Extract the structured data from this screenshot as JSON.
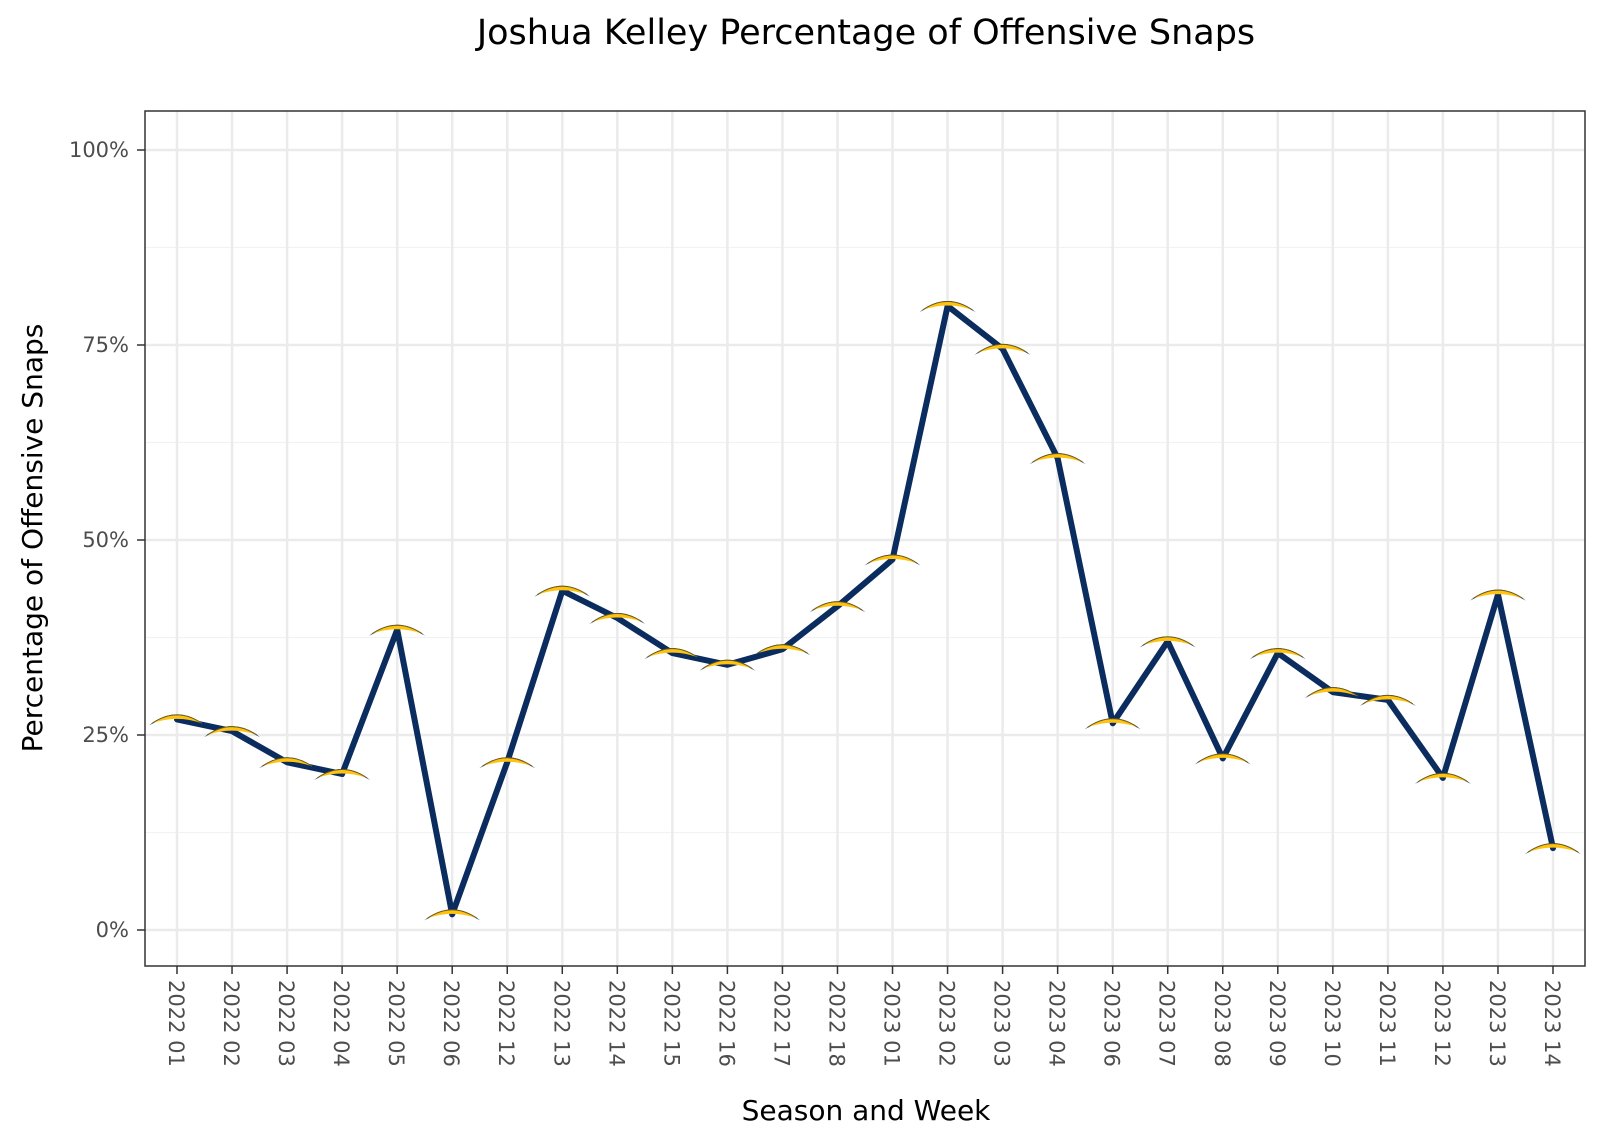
{
  "chart_data": {
    "type": "line",
    "title": "Joshua Kelley Percentage of Offensive Snaps",
    "xlabel": "Season and Week",
    "ylabel": "Percentage of Offensive Snaps",
    "ylim": [
      0,
      100
    ],
    "y_ticks": [
      "0%",
      "25%",
      "50%",
      "75%",
      "100%"
    ],
    "grid": true,
    "categories": [
      "2022 01",
      "2022 02",
      "2022 03",
      "2022 04",
      "2022 05",
      "2022 06",
      "2022 12",
      "2022 13",
      "2022 14",
      "2022 15",
      "2022 16",
      "2022 17",
      "2022 18",
      "2023 01",
      "2023 02",
      "2023 03",
      "2023 04",
      "2023 06",
      "2023 07",
      "2023 08",
      "2023 09",
      "2023 10",
      "2023 11",
      "2023 12",
      "2023 13",
      "2023 14"
    ],
    "values": [
      27,
      25.5,
      21.5,
      20,
      38.5,
      2,
      21.5,
      43.5,
      40,
      35.5,
      34,
      36,
      41.5,
      47.5,
      80,
      74.5,
      60.5,
      26.5,
      37,
      22,
      35.5,
      30.5,
      29.5,
      19.5,
      43,
      10.5
    ],
    "line_color": "#0b2c5f",
    "marker": "chargers-logo-icon",
    "marker_colors": [
      "#ffc20e",
      "#0b2c5f"
    ]
  }
}
